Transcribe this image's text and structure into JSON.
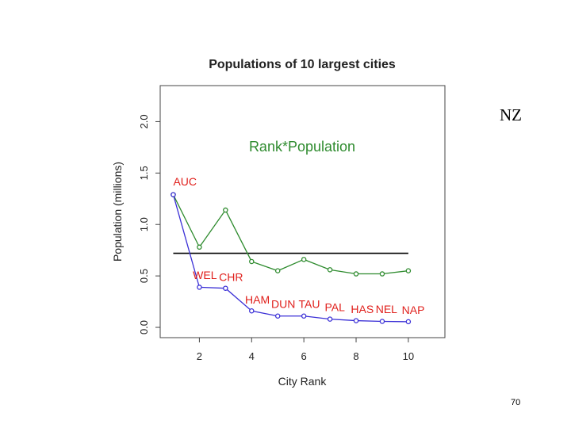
{
  "slide": {
    "corner_label": "NZ",
    "page_number": "70"
  },
  "colors": {
    "rank_pop_series": "#2e8b2e",
    "population_series": "#3a2fd6",
    "city_labels": "#e0201c",
    "reference_line": "#000000"
  },
  "chart_data": {
    "type": "line",
    "title": "Populations of 10 largest cities",
    "xlabel": "City Rank",
    "ylabel": "Population (millions)",
    "xlim": [
      0.5,
      11.4
    ],
    "ylim": [
      -0.1,
      2.35
    ],
    "x_ticks": [
      2,
      4,
      6,
      8,
      10
    ],
    "y_ticks": [
      0.0,
      0.5,
      1.0,
      1.5,
      2.0
    ],
    "y_tick_labels": [
      "0.0",
      "0.5",
      "1.0",
      "1.5",
      "2.0"
    ],
    "annotation": "Rank*Population",
    "x": [
      1,
      2,
      3,
      4,
      5,
      6,
      7,
      8,
      9,
      10
    ],
    "series": [
      {
        "name": "Rank*Population",
        "values": [
          1.29,
          0.78,
          1.14,
          0.64,
          0.55,
          0.66,
          0.56,
          0.52,
          0.52,
          0.55
        ]
      },
      {
        "name": "Population",
        "values": [
          1.29,
          0.39,
          0.38,
          0.16,
          0.11,
          0.11,
          0.08,
          0.065,
          0.058,
          0.055
        ]
      }
    ],
    "reference_line": {
      "x_from": 1,
      "x_to": 10,
      "y": 0.72
    },
    "city_labels": [
      {
        "text": "AUC",
        "x": 1.0,
        "y": 1.38
      },
      {
        "text": "WEL",
        "x": 1.75,
        "y": 0.47
      },
      {
        "text": "CHR",
        "x": 2.75,
        "y": 0.45
      },
      {
        "text": "HAM",
        "x": 3.75,
        "y": 0.23
      },
      {
        "text": "DUN",
        "x": 4.75,
        "y": 0.19
      },
      {
        "text": "TAU",
        "x": 5.8,
        "y": 0.19
      },
      {
        "text": "PAL",
        "x": 6.8,
        "y": 0.16
      },
      {
        "text": "HAS",
        "x": 7.8,
        "y": 0.14
      },
      {
        "text": "NEL",
        "x": 8.75,
        "y": 0.14
      },
      {
        "text": "NAP",
        "x": 9.75,
        "y": 0.13
      }
    ]
  }
}
